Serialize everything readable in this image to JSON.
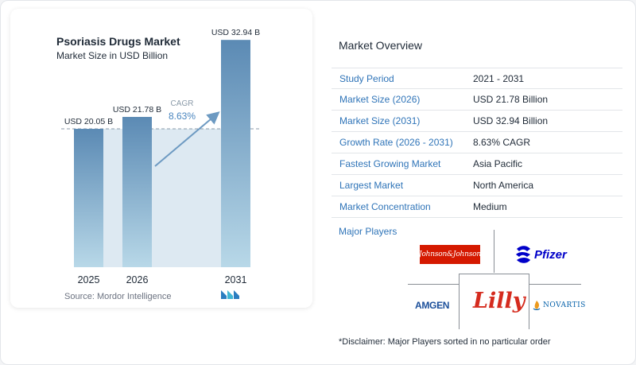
{
  "chart_data": {
    "type": "bar",
    "title": "Psoriasis Drugs Market",
    "subtitle": "Market Size in USD Billion",
    "categories": [
      "2025",
      "2026",
      "2031"
    ],
    "values": [
      20.05,
      21.78,
      32.94
    ],
    "value_labels": [
      "USD 20.05 B",
      "USD 21.78 B",
      "USD 32.94 B"
    ],
    "cagr_label": "CAGR",
    "cagr_value": "8.63%",
    "ylim": [
      0,
      34
    ],
    "grid": false,
    "colors": {
      "bar_top": "#5b8ab4",
      "bar_bottom": "#b8d8e8",
      "band": "#dde9f2",
      "arrow": "#6d9ac2"
    }
  },
  "source": "Source:  Mordor Intelligence",
  "overview": {
    "title": "Market Overview",
    "rows": [
      {
        "label": "Study Period",
        "value": "2021 - 2031"
      },
      {
        "label": "Market Size (2026)",
        "value": "USD 21.78 Billion"
      },
      {
        "label": "Market Size (2031)",
        "value": "USD 32.94 Billion"
      },
      {
        "label": "Growth Rate (2026 - 2031)",
        "value": "8.63% CAGR"
      },
      {
        "label": "Fastest Growing Market",
        "value": "Asia Pacific"
      },
      {
        "label": "Largest Market",
        "value": "North America"
      },
      {
        "label": "Market Concentration",
        "value": "Medium"
      }
    ]
  },
  "major_players": {
    "title": "Major Players",
    "logos": {
      "jj": "Johnson&Johnson",
      "pfizer": "Pfizer",
      "amgen": "AMGEN",
      "lilly": "Lilly",
      "novartis": "NOVARTIS"
    }
  },
  "disclaimer": "*Disclaimer: Major Players sorted in no particular order"
}
